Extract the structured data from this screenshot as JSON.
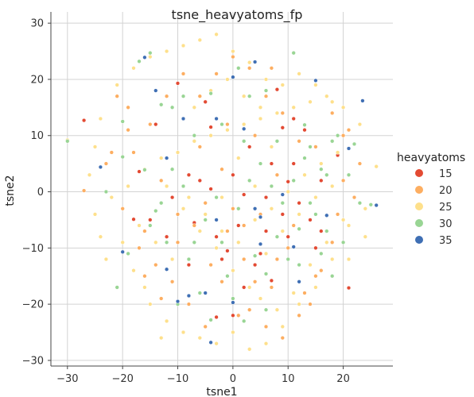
{
  "chart_data": {
    "type": "scatter",
    "title": "tsne_heavyatoms_fp",
    "xlabel": "tsne1",
    "ylabel": "tsne2",
    "xlim": [
      -33,
      29
    ],
    "ylim": [
      -31,
      32
    ],
    "xticks": [
      -30,
      -20,
      -10,
      0,
      10,
      20
    ],
    "yticks": [
      -30,
      -20,
      -10,
      0,
      10,
      20,
      30
    ],
    "grid": true,
    "legend_title": "heavyatoms",
    "legend_position": "right",
    "series": [
      {
        "name": "15",
        "color": "#e34a33",
        "points": [
          [
            -27,
            12.7
          ],
          [
            -10,
            19.3
          ],
          [
            -4,
            11.5
          ],
          [
            3,
            8
          ],
          [
            9,
            11.4
          ],
          [
            10,
            1.8
          ],
          [
            12,
            -2
          ],
          [
            5,
            -11
          ],
          [
            -2,
            -12
          ],
          [
            1,
            -6
          ],
          [
            4,
            -13
          ],
          [
            7,
            -15.8
          ],
          [
            6,
            -7
          ],
          [
            -12,
            -8
          ],
          [
            -15,
            -5
          ],
          [
            -8,
            3
          ],
          [
            -6,
            2
          ],
          [
            0,
            3
          ],
          [
            3,
            2
          ],
          [
            9,
            -4
          ],
          [
            10,
            -8
          ],
          [
            15,
            -10
          ],
          [
            16,
            2
          ],
          [
            19,
            6.5
          ],
          [
            21,
            -17.1
          ],
          [
            -3,
            -22.3
          ],
          [
            -17,
            3.6
          ],
          [
            -8,
            -13
          ],
          [
            2,
            -0.5
          ],
          [
            7,
            5
          ],
          [
            -4,
            0.5
          ],
          [
            11,
            5
          ],
          [
            -1,
            -10.5
          ],
          [
            13,
            11
          ],
          [
            8,
            18.2
          ],
          [
            -5,
            16
          ],
          [
            -18,
            -4.9
          ],
          [
            -14,
            12
          ],
          [
            2,
            -17
          ],
          [
            14,
            -5
          ],
          [
            6,
            -1
          ],
          [
            -11,
            -1
          ],
          [
            0,
            -22
          ],
          [
            11,
            13
          ],
          [
            -7,
            -5.5
          ],
          [
            16,
            -7
          ],
          [
            -3,
            -8
          ]
        ]
      },
      {
        "name": "20",
        "color": "#fdae61",
        "points": [
          [
            -27,
            0.2
          ],
          [
            -22,
            7
          ],
          [
            -19,
            11
          ],
          [
            -16,
            -7
          ],
          [
            -13,
            2
          ],
          [
            -10,
            -4
          ],
          [
            -7,
            -6
          ],
          [
            -4,
            -13
          ],
          [
            -1,
            -7
          ],
          [
            2,
            -6
          ],
          [
            4,
            -16
          ],
          [
            7,
            -17
          ],
          [
            10,
            -10
          ],
          [
            12,
            -22
          ],
          [
            15,
            -15
          ],
          [
            18,
            -9
          ],
          [
            20,
            2
          ],
          [
            22,
            -1
          ],
          [
            -20,
            -3
          ],
          [
            -17,
            -10
          ],
          [
            -14,
            -13
          ],
          [
            -11,
            -16
          ],
          [
            -8,
            -20
          ],
          [
            -5,
            -24
          ],
          [
            -2,
            -16
          ],
          [
            1,
            -22
          ],
          [
            3,
            -21
          ],
          [
            6,
            -24
          ],
          [
            9,
            -26
          ],
          [
            13,
            -18
          ],
          [
            16,
            -14
          ],
          [
            19,
            -4
          ],
          [
            21,
            11
          ],
          [
            23,
            5
          ],
          [
            -23,
            5
          ],
          [
            -19,
            15
          ],
          [
            -15,
            12
          ],
          [
            -12,
            17
          ],
          [
            -9,
            21
          ],
          [
            -6,
            17
          ],
          [
            -3,
            21
          ],
          [
            0,
            24
          ],
          [
            3,
            22
          ],
          [
            6,
            17
          ],
          [
            9,
            14
          ],
          [
            12,
            9
          ],
          [
            15,
            8
          ],
          [
            18,
            14
          ],
          [
            -10,
            -9
          ],
          [
            -5,
            -2
          ],
          [
            0,
            -3
          ],
          [
            5,
            -4
          ],
          [
            8,
            -12
          ],
          [
            11,
            -6
          ],
          [
            -6,
            8
          ],
          [
            -2,
            4
          ],
          [
            4,
            10
          ],
          [
            8,
            3
          ],
          [
            -16,
            -15
          ],
          [
            14,
            -20
          ],
          [
            -21,
            17
          ],
          [
            20,
            10
          ],
          [
            -13,
            -19
          ],
          [
            -18,
            7
          ],
          [
            7,
            22
          ],
          [
            -1,
            12
          ],
          [
            2,
            -12
          ]
        ]
      },
      {
        "name": "25",
        "color": "#fee08b",
        "points": [
          [
            -30,
            9.2
          ],
          [
            -26,
            3
          ],
          [
            -24,
            -8
          ],
          [
            -21,
            -17
          ],
          [
            -18,
            -14
          ],
          [
            -15,
            -20
          ],
          [
            -12,
            -23
          ],
          [
            -9,
            -25
          ],
          [
            -6,
            -26
          ],
          [
            -3,
            -27
          ],
          [
            0,
            -25
          ],
          [
            3,
            -28
          ],
          [
            6,
            -27
          ],
          [
            9,
            -24
          ],
          [
            12,
            -20
          ],
          [
            15,
            -17
          ],
          [
            18,
            -12
          ],
          [
            21,
            -6
          ],
          [
            24,
            -3
          ],
          [
            26,
            4.5
          ],
          [
            -25,
            -4
          ],
          [
            -22,
            -1
          ],
          [
            -19,
            1
          ],
          [
            -16,
            4
          ],
          [
            -13,
            6
          ],
          [
            -10,
            7
          ],
          [
            -7,
            9
          ],
          [
            -4,
            10
          ],
          [
            -1,
            11
          ],
          [
            2,
            12
          ],
          [
            5,
            13
          ],
          [
            8,
            14
          ],
          [
            11,
            15
          ],
          [
            14,
            16
          ],
          [
            17,
            17
          ],
          [
            20,
            15
          ],
          [
            23,
            12
          ],
          [
            -24,
            13
          ],
          [
            -21,
            19
          ],
          [
            -18,
            22
          ],
          [
            -15,
            24
          ],
          [
            -12,
            25
          ],
          [
            -9,
            26
          ],
          [
            -6,
            27
          ],
          [
            -3,
            28
          ],
          [
            0,
            25
          ],
          [
            3,
            23
          ],
          [
            6,
            20
          ],
          [
            9,
            19
          ],
          [
            12,
            21
          ],
          [
            15,
            19
          ],
          [
            18,
            16
          ],
          [
            -8,
            -1
          ],
          [
            -5,
            -4
          ],
          [
            -2,
            -7
          ],
          [
            1,
            -9
          ],
          [
            4,
            -5
          ],
          [
            7,
            -3
          ],
          [
            10,
            0
          ],
          [
            13,
            3
          ],
          [
            16,
            5
          ],
          [
            19,
            7
          ],
          [
            -11,
            -12
          ],
          [
            -14,
            -9
          ],
          [
            -17,
            -6
          ],
          [
            -20,
            -9
          ],
          [
            5,
            -19
          ],
          [
            8,
            -21
          ],
          [
            11,
            -18
          ],
          [
            14,
            -13
          ],
          [
            17,
            -9
          ],
          [
            20,
            -5
          ],
          [
            -7,
            15
          ],
          [
            -4,
            18
          ],
          [
            -1,
            20
          ],
          [
            2,
            17
          ],
          [
            5,
            15
          ],
          [
            -12,
            1
          ],
          [
            -9,
            -3
          ],
          [
            -6,
            -7
          ],
          [
            -3,
            -10
          ],
          [
            0,
            -14
          ],
          [
            3,
            -17
          ],
          [
            6,
            -11
          ],
          [
            9,
            -7
          ],
          [
            12,
            -4
          ],
          [
            15,
            -1
          ],
          [
            18,
            1
          ],
          [
            21,
            -12
          ],
          [
            24,
            -8
          ],
          [
            -23,
            -12
          ],
          [
            -25,
            8
          ],
          [
            -16,
            -17
          ],
          [
            -13,
            -26
          ],
          [
            1,
            6
          ],
          [
            4,
            1
          ],
          [
            -2,
            -1
          ],
          [
            7,
            8
          ]
        ]
      },
      {
        "name": "30",
        "color": "#99d594",
        "points": [
          [
            -30,
            9
          ],
          [
            -20,
            12.5
          ],
          [
            -17,
            23.2
          ],
          [
            -15,
            24.7
          ],
          [
            -13,
            15.5
          ],
          [
            -11,
            15
          ],
          [
            -9,
            17
          ],
          [
            -7,
            10
          ],
          [
            -4,
            17.5
          ],
          [
            -2,
            12
          ],
          [
            1,
            22
          ],
          [
            3,
            17
          ],
          [
            6,
            18
          ],
          [
            8,
            9
          ],
          [
            11,
            24.7
          ],
          [
            13,
            11.9
          ],
          [
            14,
            8
          ],
          [
            16,
            4
          ],
          [
            17,
            -7
          ],
          [
            18,
            9
          ],
          [
            -21,
            -17
          ],
          [
            -19,
            -11
          ],
          [
            -14,
            -3.4
          ],
          [
            -12,
            -9
          ],
          [
            -10,
            -20
          ],
          [
            -8,
            -12
          ],
          [
            -6,
            -18
          ],
          [
            -4,
            -22.8
          ],
          [
            -2,
            -9
          ],
          [
            0,
            -19
          ],
          [
            2,
            -23
          ],
          [
            4,
            -11.4
          ],
          [
            6,
            -14.6
          ],
          [
            8,
            -8
          ],
          [
            10,
            -12
          ],
          [
            12,
            -6.6
          ],
          [
            14,
            -2
          ],
          [
            16,
            -11
          ],
          [
            18,
            -15
          ],
          [
            20,
            -9
          ],
          [
            22,
            8.5
          ],
          [
            23,
            -2
          ],
          [
            25,
            -2.3
          ],
          [
            -23,
            0
          ],
          [
            -20,
            6.2
          ],
          [
            -16,
            3.9
          ],
          [
            -13,
            -2
          ],
          [
            -11,
            4
          ],
          [
            -9,
            1
          ],
          [
            -5,
            -5
          ],
          [
            -3,
            -1
          ],
          [
            1,
            -3
          ],
          [
            3,
            2
          ],
          [
            5,
            5
          ],
          [
            7,
            1
          ],
          [
            9,
            -2
          ],
          [
            11,
            2
          ],
          [
            13,
            6
          ],
          [
            15,
            -4
          ],
          [
            17,
            3
          ],
          [
            19,
            10
          ],
          [
            21,
            3
          ],
          [
            -7,
            -9
          ],
          [
            -1,
            -15
          ],
          [
            6,
            -21
          ],
          [
            12,
            -13
          ],
          [
            -15,
            -6
          ],
          [
            2,
            9
          ]
        ]
      },
      {
        "name": "35",
        "color": "#3f6fb4",
        "points": [
          [
            -16,
            23.9
          ],
          [
            -14,
            18
          ],
          [
            -12,
            6
          ],
          [
            -10,
            -19.5
          ],
          [
            -8,
            -18.5
          ],
          [
            -5,
            -18
          ],
          [
            -4,
            -26.8
          ],
          [
            -3,
            13
          ],
          [
            0,
            20.4
          ],
          [
            2,
            11.2
          ],
          [
            4,
            -3
          ],
          [
            4,
            23.1
          ],
          [
            5,
            -9.3
          ],
          [
            11,
            -9.8
          ],
          [
            15,
            19.8
          ],
          [
            17,
            -4.2
          ],
          [
            21,
            7.7
          ],
          [
            23.5,
            16.2
          ],
          [
            -20,
            -10.7
          ],
          [
            -24,
            4.4
          ],
          [
            -12,
            -13.8
          ],
          [
            5,
            -4.5
          ],
          [
            0,
            -19.7
          ],
          [
            26,
            -2.4
          ],
          [
            -9,
            13
          ],
          [
            9,
            -0.5
          ],
          [
            -3,
            -5
          ],
          [
            12,
            -16
          ]
        ]
      }
    ]
  }
}
